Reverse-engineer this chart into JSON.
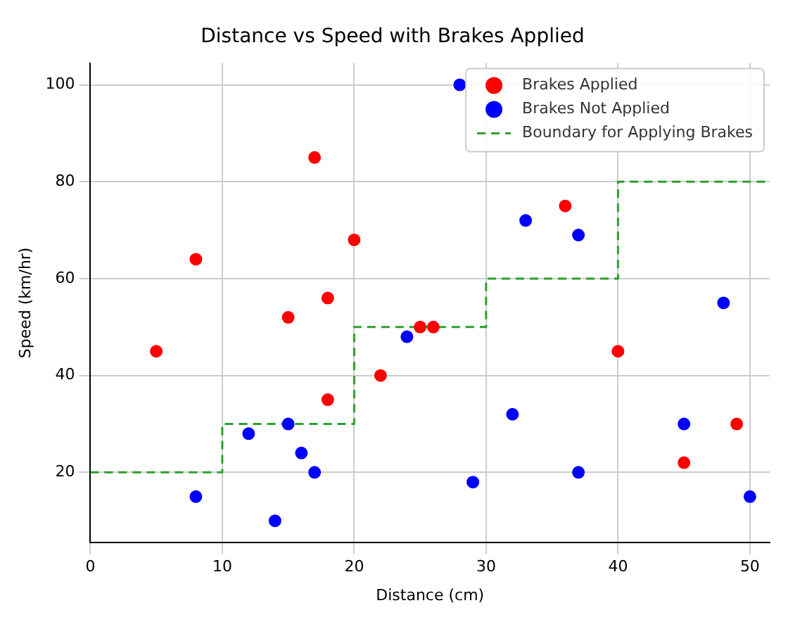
{
  "chart_data": {
    "type": "scatter",
    "title": "Distance vs Speed with Brakes Applied",
    "xlabel": "Distance (cm)",
    "ylabel": "Speed (km/hr)",
    "xlim": [
      0,
      51.5
    ],
    "ylim": [
      5.5,
      104.5
    ],
    "xticks": [
      0,
      10,
      20,
      30,
      40,
      50
    ],
    "yticks": [
      20,
      40,
      60,
      80,
      100
    ],
    "grid": true,
    "legend": "top right",
    "marker": "circle",
    "series": [
      {
        "name": "Brakes Applied",
        "color": "#ff0000",
        "type": "scatter",
        "x": [
          5,
          8,
          15,
          17,
          18,
          18,
          20,
          22,
          25,
          26,
          36,
          40,
          45,
          49
        ],
        "values": [
          45,
          64,
          52,
          85,
          56,
          35,
          68,
          40,
          50,
          50,
          75,
          45,
          22,
          30
        ]
      },
      {
        "name": "Brakes Not Applied",
        "color": "#0000ff",
        "type": "scatter",
        "x": [
          8,
          12,
          14,
          15,
          16,
          17,
          24,
          28,
          29,
          32,
          33,
          37,
          37,
          45,
          48,
          50
        ],
        "values": [
          15,
          28,
          10,
          30,
          24,
          20,
          48,
          100,
          18,
          32,
          72,
          69,
          20,
          30,
          55,
          15
        ]
      },
      {
        "name": "Boundary for Applying Brakes",
        "color": "#2ca02c",
        "type": "step",
        "line_style": "dashed",
        "marker": "none",
        "x": [
          0,
          10,
          20,
          30,
          40,
          51.5
        ],
        "values": [
          20,
          30,
          50,
          60,
          80,
          80
        ]
      }
    ]
  }
}
